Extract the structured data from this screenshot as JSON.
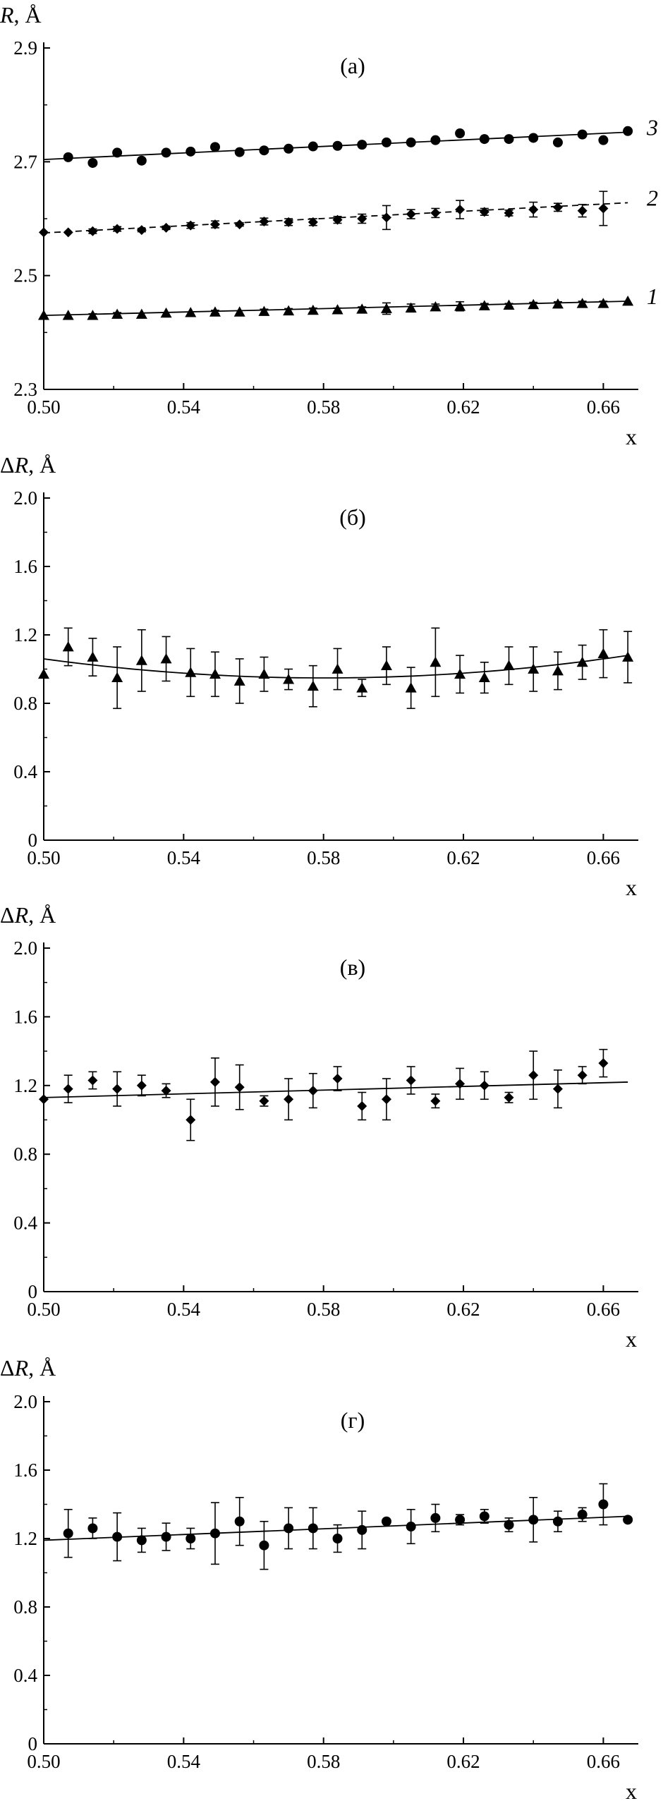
{
  "chart_data": [
    {
      "type": "scatter",
      "panel_label": "(а)",
      "ylabel_symbol": "R",
      "ylabel_unit": ", Å",
      "xlabel": "x",
      "xlim": [
        0.5,
        0.67
      ],
      "ylim": [
        2.3,
        2.9
      ],
      "xticks": [
        "0.50",
        "0.54",
        "0.58",
        "0.62",
        "0.66"
      ],
      "xtick_values": [
        0.5,
        0.54,
        0.58,
        0.62,
        0.66
      ],
      "yticks": [
        "2.3",
        "2.5",
        "2.7",
        "2.9"
      ],
      "ytick_values": [
        2.3,
        2.5,
        2.7,
        2.9
      ],
      "grid": false,
      "series": [
        {
          "name": "1",
          "marker": "triangle",
          "fit_style": "solid",
          "fit": [
            [
              0.5,
              2.43
            ],
            [
              0.667,
              2.455
            ]
          ],
          "x": [
            0.5,
            0.507,
            0.514,
            0.521,
            0.528,
            0.535,
            0.542,
            0.549,
            0.556,
            0.563,
            0.57,
            0.577,
            0.584,
            0.591,
            0.598,
            0.605,
            0.612,
            0.619,
            0.626,
            0.633,
            0.64,
            0.647,
            0.654,
            0.66,
            0.667
          ],
          "y": [
            2.43,
            2.43,
            2.43,
            2.432,
            2.432,
            2.434,
            2.435,
            2.436,
            2.436,
            2.437,
            2.438,
            2.439,
            2.44,
            2.441,
            2.442,
            2.443,
            2.445,
            2.446,
            2.447,
            2.448,
            2.449,
            2.45,
            2.451,
            2.451,
            2.455
          ],
          "err": [
            0,
            0,
            0.003,
            0.003,
            0,
            0,
            0,
            0.003,
            0,
            0.004,
            0.004,
            0.004,
            0.003,
            0.004,
            0.01,
            0.007,
            0.005,
            0.008,
            0.004,
            0.003,
            0.004,
            0.004,
            0.004,
            0.004,
            0
          ]
        },
        {
          "name": "2",
          "marker": "diamond",
          "fit_style": "dashed",
          "fit": [
            [
              0.5,
              2.575
            ],
            [
              0.667,
              2.628
            ]
          ],
          "x": [
            0.5,
            0.507,
            0.514,
            0.521,
            0.528,
            0.535,
            0.542,
            0.549,
            0.556,
            0.563,
            0.57,
            0.577,
            0.584,
            0.591,
            0.598,
            0.605,
            0.612,
            0.619,
            0.626,
            0.633,
            0.64,
            0.647,
            0.654,
            0.66
          ],
          "y": [
            2.576,
            2.576,
            2.578,
            2.582,
            2.58,
            2.584,
            2.588,
            2.59,
            2.59,
            2.595,
            2.594,
            2.594,
            2.598,
            2.6,
            2.602,
            2.608,
            2.61,
            2.616,
            2.612,
            2.61,
            2.616,
            2.62,
            2.614,
            2.618
          ],
          "err": [
            0,
            0,
            0.004,
            0.004,
            0.003,
            0.003,
            0.005,
            0.006,
            0.003,
            0.006,
            0.006,
            0.006,
            0.006,
            0.008,
            0.021,
            0.008,
            0.008,
            0.016,
            0.006,
            0.005,
            0.013,
            0.007,
            0.011,
            0.03
          ]
        },
        {
          "name": "3",
          "marker": "circle",
          "fit_style": "solid",
          "fit": [
            [
              0.5,
              2.704
            ],
            [
              0.667,
              2.752
            ]
          ],
          "x": [
            0.507,
            0.514,
            0.521,
            0.528,
            0.535,
            0.542,
            0.549,
            0.556,
            0.563,
            0.57,
            0.577,
            0.584,
            0.591,
            0.598,
            0.605,
            0.612,
            0.619,
            0.626,
            0.633,
            0.64,
            0.647,
            0.654,
            0.66,
            0.667
          ],
          "y": [
            2.708,
            2.698,
            2.716,
            2.702,
            2.716,
            2.718,
            2.726,
            2.717,
            2.72,
            2.723,
            2.727,
            2.728,
            2.73,
            2.734,
            2.734,
            2.738,
            2.75,
            2.74,
            2.74,
            2.742,
            2.734,
            2.748,
            2.738,
            2.754
          ]
        }
      ]
    },
    {
      "type": "scatter",
      "panel_label": "(б)",
      "ylabel_symbol": "ΔR",
      "ylabel_unit": ", Å",
      "xlabel": "x",
      "xlim": [
        0.5,
        0.67
      ],
      "ylim": [
        0,
        2.0
      ],
      "xticks": [
        "0.50",
        "0.54",
        "0.58",
        "0.62",
        "0.66"
      ],
      "xtick_values": [
        0.5,
        0.54,
        0.58,
        0.62,
        0.66
      ],
      "yticks": [
        "0",
        "0.4",
        "0.8",
        "1.2",
        "1.6",
        "2.0"
      ],
      "ytick_values": [
        0,
        0.4,
        0.8,
        1.2,
        1.6,
        2.0
      ],
      "grid": false,
      "series": [
        {
          "marker": "triangle",
          "fit_type": "quadratic",
          "fit_points": [
            [
              0.5,
              1.06
            ],
            [
              0.59,
              0.95
            ],
            [
              0.667,
              1.08
            ]
          ],
          "x": [
            0.5,
            0.507,
            0.514,
            0.521,
            0.528,
            0.535,
            0.542,
            0.549,
            0.556,
            0.563,
            0.57,
            0.577,
            0.584,
            0.591,
            0.598,
            0.605,
            0.612,
            0.619,
            0.626,
            0.633,
            0.64,
            0.647,
            0.654,
            0.66,
            0.667
          ],
          "y": [
            0.97,
            1.13,
            1.07,
            0.95,
            1.05,
            1.06,
            0.98,
            0.97,
            0.93,
            0.97,
            0.94,
            0.9,
            1.0,
            0.89,
            1.02,
            0.89,
            1.04,
            0.97,
            0.95,
            1.02,
            1.0,
            0.99,
            1.04,
            1.09,
            1.07
          ],
          "err": [
            0,
            0.11,
            0.11,
            0.18,
            0.18,
            0.13,
            0.14,
            0.13,
            0.13,
            0.1,
            0.06,
            0.12,
            0.12,
            0.05,
            0.11,
            0.12,
            0.2,
            0.11,
            0.09,
            0.11,
            0.13,
            0.11,
            0.1,
            0.14,
            0.15
          ]
        }
      ]
    },
    {
      "type": "scatter",
      "panel_label": "(в)",
      "ylabel_symbol": "ΔR",
      "ylabel_unit": ", Å",
      "xlabel": "x",
      "xlim": [
        0.5,
        0.67
      ],
      "ylim": [
        0,
        2.0
      ],
      "xticks": [
        "0.50",
        "0.54",
        "0.58",
        "0.62",
        "0.66"
      ],
      "xtick_values": [
        0.5,
        0.54,
        0.58,
        0.62,
        0.66
      ],
      "yticks": [
        "0",
        "0.4",
        "0.8",
        "1.2",
        "1.6",
        "2.0"
      ],
      "ytick_values": [
        0,
        0.4,
        0.8,
        1.2,
        1.6,
        2.0
      ],
      "grid": false,
      "series": [
        {
          "marker": "diamond",
          "fit": [
            [
              0.5,
              1.13
            ],
            [
              0.667,
              1.22
            ]
          ],
          "x": [
            0.5,
            0.507,
            0.514,
            0.521,
            0.528,
            0.535,
            0.542,
            0.549,
            0.556,
            0.563,
            0.57,
            0.577,
            0.584,
            0.591,
            0.598,
            0.605,
            0.612,
            0.619,
            0.626,
            0.633,
            0.64,
            0.647,
            0.654,
            0.66
          ],
          "y": [
            1.12,
            1.18,
            1.23,
            1.18,
            1.2,
            1.17,
            1.0,
            1.22,
            1.19,
            1.11,
            1.12,
            1.17,
            1.24,
            1.08,
            1.12,
            1.23,
            1.11,
            1.21,
            1.2,
            1.13,
            1.26,
            1.18,
            1.26,
            1.33
          ],
          "err": [
            0,
            0.08,
            0.05,
            0.1,
            0.06,
            0.04,
            0.12,
            0.14,
            0.13,
            0.03,
            0.12,
            0.1,
            0.07,
            0.08,
            0.12,
            0.08,
            0.04,
            0.09,
            0.08,
            0.03,
            0.14,
            0.11,
            0.05,
            0.08
          ]
        }
      ]
    },
    {
      "type": "scatter",
      "panel_label": "(г)",
      "ylabel_symbol": "ΔR",
      "ylabel_unit": ", Å",
      "xlabel": "x",
      "xlim": [
        0.5,
        0.67
      ],
      "ylim": [
        0,
        2.0
      ],
      "xticks": [
        "0.50",
        "0.54",
        "0.58",
        "0.62",
        "0.66"
      ],
      "xtick_values": [
        0.5,
        0.54,
        0.58,
        0.62,
        0.66
      ],
      "yticks": [
        "0",
        "0.4",
        "0.8",
        "1.2",
        "1.6",
        "2.0"
      ],
      "ytick_values": [
        0,
        0.4,
        0.8,
        1.2,
        1.6,
        2.0
      ],
      "grid": false,
      "series": [
        {
          "marker": "circle",
          "fit": [
            [
              0.5,
              1.19
            ],
            [
              0.667,
              1.33
            ]
          ],
          "x": [
            0.507,
            0.514,
            0.521,
            0.528,
            0.535,
            0.542,
            0.549,
            0.556,
            0.563,
            0.57,
            0.577,
            0.584,
            0.591,
            0.598,
            0.605,
            0.612,
            0.619,
            0.626,
            0.633,
            0.64,
            0.647,
            0.654,
            0.66,
            0.667
          ],
          "y": [
            1.23,
            1.26,
            1.21,
            1.19,
            1.21,
            1.2,
            1.23,
            1.3,
            1.16,
            1.26,
            1.26,
            1.2,
            1.25,
            1.3,
            1.27,
            1.32,
            1.31,
            1.33,
            1.28,
            1.31,
            1.3,
            1.34,
            1.4,
            1.31
          ],
          "err": [
            0.14,
            0.06,
            0.14,
            0.07,
            0.08,
            0.06,
            0.18,
            0.14,
            0.14,
            0.12,
            0.12,
            0.08,
            0.11,
            0,
            0.1,
            0.08,
            0.03,
            0.04,
            0.04,
            0.13,
            0.06,
            0.04,
            0.12,
            0
          ]
        }
      ]
    }
  ]
}
